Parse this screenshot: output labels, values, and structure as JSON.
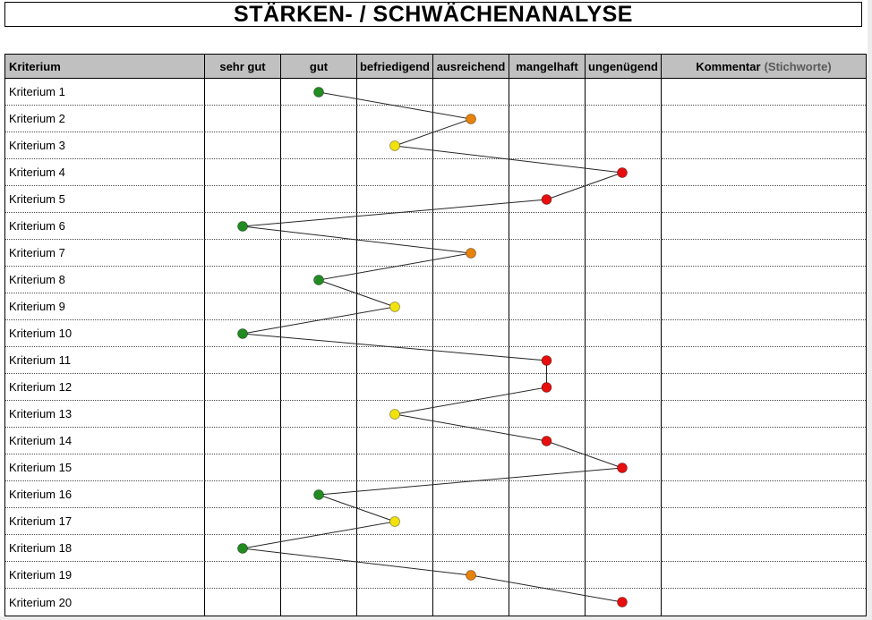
{
  "title": "STÄRKEN- / SCHWÄCHENANALYSE",
  "table": {
    "criterion_header": "Kriterium",
    "rating_headers": [
      "sehr gut",
      "gut",
      "befriedigend",
      "ausreichend",
      "mangelhaft",
      "ungenügend"
    ],
    "comment_header": "Kommentar",
    "comment_header_suffix": "(Stichworte)",
    "rows": [
      {
        "label": "Kriterium 1",
        "rating": "gut",
        "comment": ""
      },
      {
        "label": "Kriterium 2",
        "rating": "ausreichend",
        "comment": ""
      },
      {
        "label": "Kriterium 3",
        "rating": "befriedigend",
        "comment": ""
      },
      {
        "label": "Kriterium 4",
        "rating": "ungenügend",
        "comment": ""
      },
      {
        "label": "Kriterium 5",
        "rating": "mangelhaft",
        "comment": ""
      },
      {
        "label": "Kriterium 6",
        "rating": "sehr gut",
        "comment": ""
      },
      {
        "label": "Kriterium 7",
        "rating": "ausreichend",
        "comment": ""
      },
      {
        "label": "Kriterium 8",
        "rating": "gut",
        "comment": ""
      },
      {
        "label": "Kriterium 9",
        "rating": "befriedigend",
        "comment": ""
      },
      {
        "label": "Kriterium 10",
        "rating": "sehr gut",
        "comment": ""
      },
      {
        "label": "Kriterium 11",
        "rating": "mangelhaft",
        "comment": ""
      },
      {
        "label": "Kriterium 12",
        "rating": "mangelhaft",
        "comment": ""
      },
      {
        "label": "Kriterium 13",
        "rating": "befriedigend",
        "comment": ""
      },
      {
        "label": "Kriterium 14",
        "rating": "mangelhaft",
        "comment": ""
      },
      {
        "label": "Kriterium 15",
        "rating": "ungenügend",
        "comment": ""
      },
      {
        "label": "Kriterium 16",
        "rating": "gut",
        "comment": ""
      },
      {
        "label": "Kriterium 17",
        "rating": "befriedigend",
        "comment": ""
      },
      {
        "label": "Kriterium 18",
        "rating": "sehr gut",
        "comment": ""
      },
      {
        "label": "Kriterium 19",
        "rating": "ausreichend",
        "comment": ""
      },
      {
        "label": "Kriterium 20",
        "rating": "ungenügend",
        "comment": ""
      }
    ]
  },
  "chart_data": {
    "type": "line",
    "title": "STÄRKEN- / SCHWÄCHENANALYSE",
    "categories": [
      "Kriterium 1",
      "Kriterium 2",
      "Kriterium 3",
      "Kriterium 4",
      "Kriterium 5",
      "Kriterium 6",
      "Kriterium 7",
      "Kriterium 8",
      "Kriterium 9",
      "Kriterium 10",
      "Kriterium 11",
      "Kriterium 12",
      "Kriterium 13",
      "Kriterium 14",
      "Kriterium 15",
      "Kriterium 16",
      "Kriterium 17",
      "Kriterium 18",
      "Kriterium 19",
      "Kriterium 20"
    ],
    "scale": [
      "sehr gut",
      "gut",
      "befriedigend",
      "ausreichend",
      "mangelhaft",
      "ungenügend"
    ],
    "scale_values": [
      1,
      2,
      3,
      4,
      5,
      6
    ],
    "values": [
      2,
      4,
      3,
      6,
      5,
      1,
      4,
      2,
      3,
      1,
      5,
      5,
      3,
      5,
      6,
      2,
      3,
      1,
      4,
      6
    ],
    "ratings": [
      "gut",
      "ausreichend",
      "befriedigend",
      "ungenügend",
      "mangelhaft",
      "sehr gut",
      "ausreichend",
      "gut",
      "befriedigend",
      "sehr gut",
      "mangelhaft",
      "mangelhaft",
      "befriedigend",
      "mangelhaft",
      "ungenügend",
      "gut",
      "befriedigend",
      "sehr gut",
      "ausreichend",
      "ungenügend"
    ],
    "point_colors_by_rating": {
      "sehr gut": "#228b22",
      "gut": "#228b22",
      "befriedigend": "#f2e20c",
      "ausreichend": "#e8820a",
      "mangelhaft": "#e60e0e",
      "ungenügend": "#e60e0e"
    },
    "line_color": "#262626",
    "legend_position": "none",
    "grid": "dotted-rows"
  },
  "colors": {
    "header_bg": "#c0c0c0",
    "grid_line": "#000000",
    "row_divider": "#4d4d4d",
    "background": "#ffffff"
  }
}
